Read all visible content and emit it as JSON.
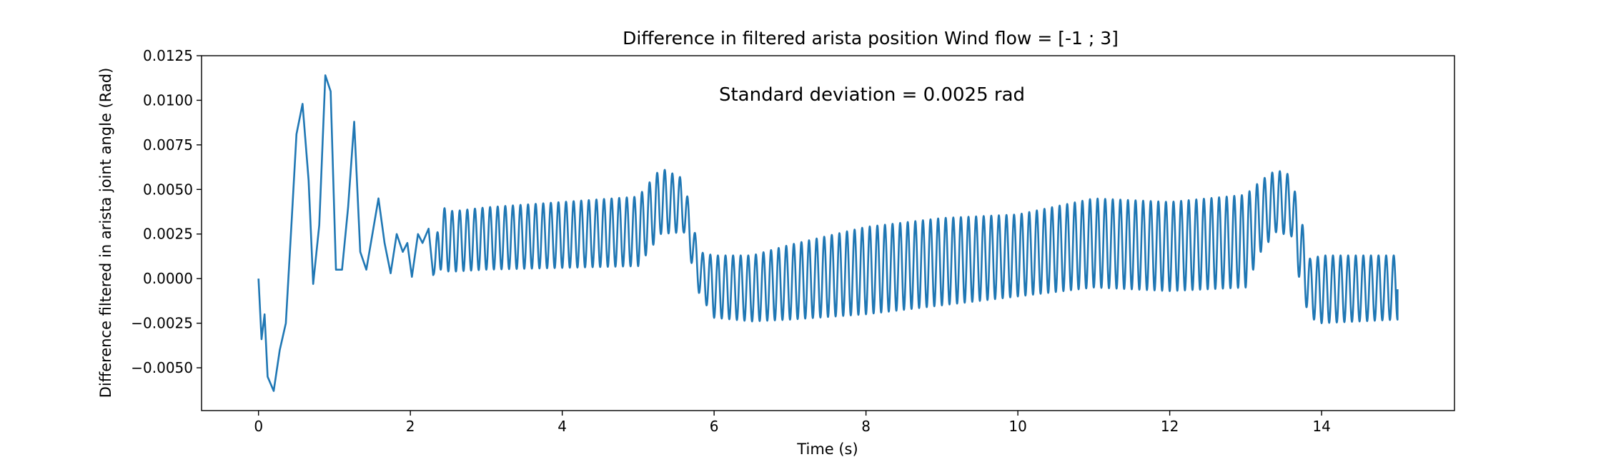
{
  "chart_data": {
    "type": "line",
    "title": "Difference in filtered arista position Wind flow = [-1 ; 3]",
    "xlabel": "Time (s)",
    "ylabel": "Difference filtered in arista joint angle (Rad)",
    "annotation": "Standard deviation = 0.0025 rad",
    "xlim": [
      -0.75,
      15.75
    ],
    "ylim": [
      -0.0074,
      0.0125
    ],
    "xticks": [
      0,
      2,
      4,
      6,
      8,
      10,
      12,
      14
    ],
    "xtick_labels": [
      "0",
      "2",
      "4",
      "6",
      "8",
      "10",
      "12",
      "14"
    ],
    "yticks": [
      -0.005,
      -0.0025,
      0.0,
      0.0025,
      0.005,
      0.0075,
      0.01,
      0.0125
    ],
    "ytick_labels": [
      "−0.0050",
      "−0.0025",
      "0.0000",
      "0.0025",
      "0.0050",
      "0.0075",
      "0.0100",
      "0.0125"
    ],
    "grid": false,
    "color": "#1f77b4",
    "series": [
      {
        "samples_per_second": 100,
        "envelope": {
          "t": [
            0.0,
            0.04,
            0.08,
            0.12,
            0.2,
            0.28,
            0.36,
            0.44,
            0.5,
            0.58,
            0.66,
            0.72,
            0.8,
            0.88,
            0.95,
            1.02,
            1.1,
            1.18,
            1.26,
            1.34,
            1.42,
            1.5,
            1.58,
            1.66,
            1.74,
            1.82,
            1.9,
            1.96,
            2.02,
            2.1,
            2.16,
            2.24,
            2.3,
            2.4,
            2.5,
            2.6,
            3.0,
            4.0,
            5.0,
            5.3,
            5.6,
            5.8,
            6.0,
            6.5,
            7.0,
            8.0,
            9.0,
            10.0,
            11.0,
            12.0,
            13.0,
            13.2,
            13.4,
            13.6,
            13.75,
            13.85,
            14.0,
            15.0
          ],
          "lo": [
            0.0,
            -0.0034,
            -0.002,
            -0.0055,
            -0.0063,
            -0.004,
            -0.0025,
            0.0035,
            0.0081,
            0.0098,
            0.0055,
            -0.0003,
            0.003,
            0.0114,
            0.0105,
            0.0005,
            0.0005,
            0.004,
            0.0088,
            0.0015,
            0.0005,
            0.0025,
            0.0045,
            0.002,
            0.0003,
            0.0025,
            0.0015,
            0.002,
            0.0001,
            0.0025,
            0.002,
            0.0028,
            0.0002,
            0.0005,
            0.0004,
            0.0004,
            0.0005,
            0.0006,
            0.0007,
            0.0025,
            0.0026,
            -0.0008,
            -0.0022,
            -0.0024,
            -0.0023,
            -0.002,
            -0.0015,
            -0.001,
            -0.0005,
            -0.0007,
            -0.0005,
            0.0015,
            0.0026,
            0.0024,
            -0.001,
            -0.0022,
            -0.0025,
            -0.0023
          ],
          "hi": [
            0.0,
            -0.0034,
            -0.002,
            -0.0055,
            -0.0063,
            -0.004,
            -0.0025,
            0.0035,
            0.0081,
            0.0098,
            0.0055,
            -0.0003,
            0.003,
            0.0114,
            0.0105,
            0.0005,
            0.0005,
            0.004,
            0.0088,
            0.0015,
            0.0005,
            0.0025,
            0.0045,
            0.002,
            0.0003,
            0.0025,
            0.0015,
            0.002,
            0.0001,
            0.0025,
            0.002,
            0.0028,
            0.005,
            0.0041,
            0.0038,
            0.0038,
            0.004,
            0.0043,
            0.0046,
            0.0062,
            0.0056,
            0.0015,
            0.0013,
            0.0013,
            0.0019,
            0.0029,
            0.0034,
            0.0036,
            0.0045,
            0.0043,
            0.0047,
            0.0055,
            0.0061,
            0.0058,
            0.003,
            0.0011,
            0.0013,
            0.0013
          ]
        },
        "oscillation_period_s": 0.1,
        "oscillation_start_s": 2.3,
        "t_end": 15.0,
        "end_value": -0.0006
      }
    ]
  }
}
